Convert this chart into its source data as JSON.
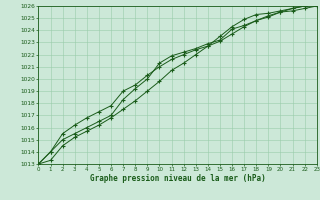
{
  "title": "Graphe pression niveau de la mer (hPa)",
  "bg_color": "#cce8d8",
  "grid_color": "#99ccaa",
  "line_color": "#1a5c1a",
  "ylim": [
    1013,
    1026
  ],
  "xlim": [
    0,
    23
  ],
  "yticks": [
    1013,
    1014,
    1015,
    1016,
    1017,
    1018,
    1019,
    1020,
    1021,
    1022,
    1023,
    1024,
    1025,
    1026
  ],
  "xticks": [
    0,
    1,
    2,
    3,
    4,
    5,
    6,
    7,
    8,
    9,
    10,
    11,
    12,
    13,
    14,
    15,
    16,
    17,
    18,
    19,
    20,
    21,
    22,
    23
  ],
  "line1_x": [
    0,
    1,
    2,
    3,
    4,
    5,
    6,
    7,
    8,
    9,
    10,
    11,
    12,
    13,
    14,
    15,
    16,
    17,
    18,
    19,
    20,
    21,
    22,
    23
  ],
  "line1_y": [
    1013.0,
    1014.0,
    1015.0,
    1015.5,
    1016.0,
    1016.5,
    1017.0,
    1018.3,
    1019.2,
    1020.0,
    1021.3,
    1021.9,
    1022.2,
    1022.5,
    1022.9,
    1023.2,
    1024.1,
    1024.4,
    1024.8,
    1025.1,
    1025.5,
    1025.6,
    1025.8,
    1026.0
  ],
  "line2_x": [
    0,
    1,
    2,
    3,
    4,
    5,
    6,
    7,
    8,
    9,
    10,
    11,
    12,
    13,
    14,
    15,
    16,
    17,
    18,
    19,
    20,
    21,
    22,
    23
  ],
  "line2_y": [
    1013.0,
    1014.0,
    1015.5,
    1016.2,
    1016.8,
    1017.3,
    1017.8,
    1019.0,
    1019.5,
    1020.3,
    1021.0,
    1021.6,
    1022.0,
    1022.4,
    1022.7,
    1023.1,
    1023.7,
    1024.3,
    1024.8,
    1025.2,
    1025.5,
    1025.8,
    1026.0,
    1026.1
  ],
  "line3_x": [
    0,
    1,
    2,
    3,
    4,
    5,
    6,
    7,
    8,
    9,
    10,
    11,
    12,
    13,
    14,
    15,
    16,
    17,
    18,
    19,
    20,
    21,
    22,
    23
  ],
  "line3_y": [
    1013.0,
    1013.3,
    1014.5,
    1015.2,
    1015.7,
    1016.2,
    1016.8,
    1017.5,
    1018.2,
    1019.0,
    1019.8,
    1020.7,
    1021.3,
    1022.0,
    1022.7,
    1023.5,
    1024.3,
    1024.9,
    1025.3,
    1025.4,
    1025.6,
    1025.8,
    1026.0,
    1026.2
  ]
}
